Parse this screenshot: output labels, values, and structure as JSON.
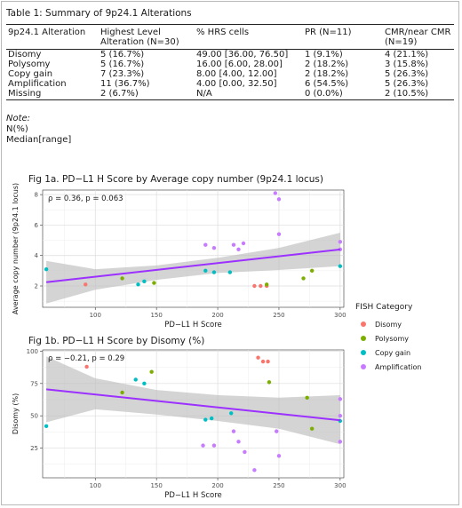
{
  "table": {
    "title": "Table 1: Summary of 9p24.1 Alterations",
    "headers": [
      "9p24.1 Alteration",
      "Highest Level Alteration (N=30)",
      "% HRS cells",
      "PR (N=11)",
      "CMR/near CMR (N=19)"
    ],
    "rows": [
      [
        "Disomy",
        "5 (16.7%)",
        "49.00 [36.00, 76.50]",
        "1 (9.1%)",
        "4 (21.1%)"
      ],
      [
        "Polysomy",
        "5 (16.7%)",
        "16.00 [6.00, 28.00]",
        "2 (18.2%)",
        "3 (15.8%)"
      ],
      [
        "Copy gain",
        "7 (23.3%)",
        "8.00 [4.00, 12.00]",
        "2 (18.2%)",
        "5 (26.3%)"
      ],
      [
        "Amplification",
        "11 (36.7%)",
        "4.00 [0.00, 32.50]",
        "6 (54.5%)",
        "5 (26.3%)"
      ],
      [
        "Missing",
        "2 (6.7%)",
        "N/A",
        "0 (0.0%)",
        "2 (10.5%)"
      ]
    ],
    "note_label": "Note:",
    "note_lines": [
      "N(%)",
      "Median[range]"
    ]
  },
  "legend": {
    "title": "FISH Category",
    "items": [
      {
        "label": "Disomy",
        "color": "#f8766d"
      },
      {
        "label": "Polysomy",
        "color": "#7cae00"
      },
      {
        "label": "Copy gain",
        "color": "#00bfc4"
      },
      {
        "label": "Amplification",
        "color": "#c77cff"
      }
    ]
  },
  "chart_data": [
    {
      "type": "scatter",
      "title": "Fig 1a. PD−L1 H Score by Average copy number (9p24.1 locus)",
      "xlabel": "PD−L1 H Score",
      "ylabel": "Average copy number (9p24.1 locus)",
      "annotation": "ρ = 0.36, p = 0.063",
      "xlim": [
        57,
        303
      ],
      "ylim": [
        0.6,
        8.3
      ],
      "xticks": [
        100,
        150,
        200,
        250,
        300
      ],
      "yticks": [
        2,
        4,
        6,
        8
      ],
      "regression": {
        "x": [
          60,
          300
        ],
        "y": [
          2.25,
          4.4
        ],
        "color": "#9b30ff"
      },
      "confidence_band": {
        "x": [
          60,
          100,
          150,
          200,
          250,
          300
        ],
        "upper": [
          3.65,
          3.1,
          3.35,
          3.85,
          4.5,
          5.5
        ],
        "lower": [
          0.85,
          1.75,
          2.4,
          2.85,
          3.05,
          3.3
        ]
      },
      "series": [
        {
          "name": "Disomy",
          "points": [
            [
              92,
              2.1
            ],
            [
              230,
              2.0
            ],
            [
              235,
              2.0
            ],
            [
              240,
              2.0
            ]
          ]
        },
        {
          "name": "Polysomy",
          "points": [
            [
              122,
              2.5
            ],
            [
              148,
              2.2
            ],
            [
              240,
              2.1
            ],
            [
              270,
              2.5
            ],
            [
              277,
              3.0
            ]
          ]
        },
        {
          "name": "Copy gain",
          "points": [
            [
              60,
              3.1
            ],
            [
              135,
              2.1
            ],
            [
              140,
              2.3
            ],
            [
              190,
              3.0
            ],
            [
              197,
              2.9
            ],
            [
              210,
              2.9
            ],
            [
              300,
              3.3
            ]
          ]
        },
        {
          "name": "Amplification",
          "points": [
            [
              190,
              4.7
            ],
            [
              197,
              4.5
            ],
            [
              213,
              4.7
            ],
            [
              217,
              4.4
            ],
            [
              221,
              4.8
            ],
            [
              247,
              8.1
            ],
            [
              250,
              7.7
            ],
            [
              250,
              5.4
            ],
            [
              300,
              4.9
            ],
            [
              300,
              4.4
            ]
          ]
        }
      ]
    },
    {
      "type": "scatter",
      "title": "Fig 1b. PD−L1 H Score by Disomy (%)",
      "xlabel": "PD−L1 H Score",
      "ylabel": "Disomy (%)",
      "annotation": "ρ = −0.21, p = 0.29",
      "xlim": [
        57,
        303
      ],
      "ylim": [
        2,
        101
      ],
      "xticks": [
        100,
        150,
        200,
        250,
        300
      ],
      "yticks": [
        25,
        50,
        75,
        100
      ],
      "regression": {
        "x": [
          60,
          300
        ],
        "y": [
          70.5,
          46.5
        ],
        "color": "#9b30ff"
      },
      "confidence_band": {
        "x": [
          60,
          100,
          150,
          200,
          250,
          300
        ],
        "upper": [
          96,
          79,
          70,
          66,
          64,
          66
        ],
        "lower": [
          45,
          55,
          51,
          46,
          40,
          28
        ]
      },
      "series": [
        {
          "name": "Disomy",
          "points": [
            [
              93,
              88
            ],
            [
              233,
              95
            ],
            [
              237,
              92
            ],
            [
              241,
              92
            ]
          ]
        },
        {
          "name": "Polysomy",
          "points": [
            [
              122,
              68
            ],
            [
              146,
              84
            ],
            [
              242,
              76
            ],
            [
              273,
              64
            ],
            [
              277,
              40
            ]
          ]
        },
        {
          "name": "Copy gain",
          "points": [
            [
              60,
              42
            ],
            [
              133,
              78
            ],
            [
              140,
              75
            ],
            [
              190,
              47
            ],
            [
              195,
              48
            ],
            [
              211,
              52
            ],
            [
              300,
              46
            ]
          ]
        },
        {
          "name": "Amplification",
          "points": [
            [
              188,
              27
            ],
            [
              197,
              27
            ],
            [
              213,
              38
            ],
            [
              217,
              30
            ],
            [
              222,
              22
            ],
            [
              230,
              8
            ],
            [
              248,
              38
            ],
            [
              250,
              19
            ],
            [
              300,
              63
            ],
            [
              300,
              50
            ],
            [
              300,
              30
            ]
          ]
        }
      ]
    }
  ]
}
